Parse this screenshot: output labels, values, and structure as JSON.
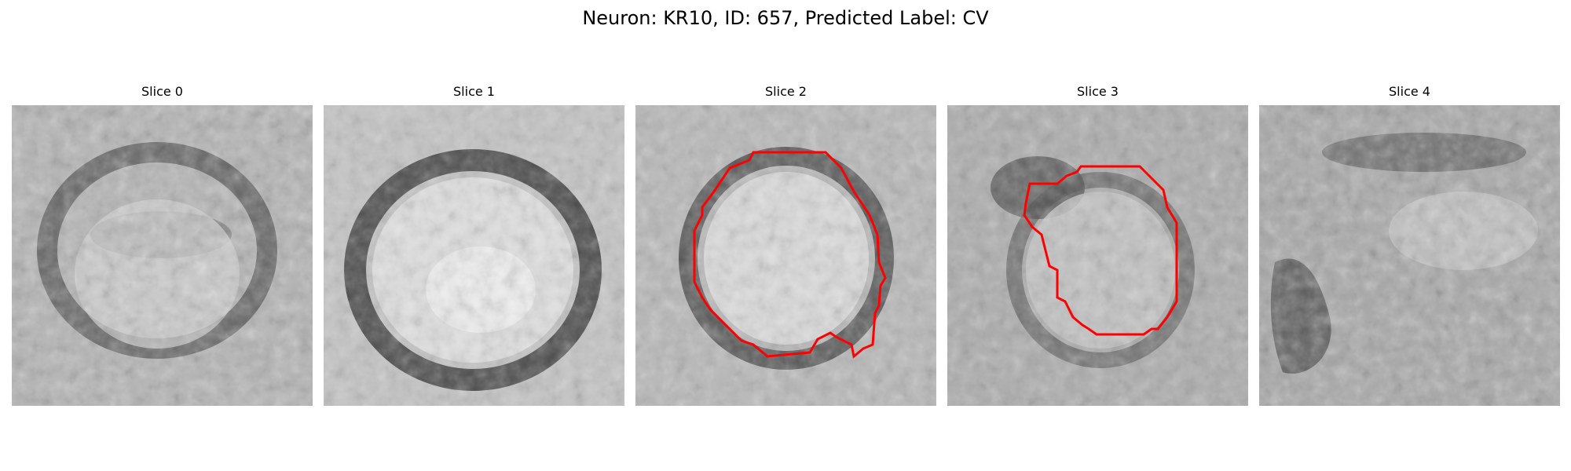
{
  "figure": {
    "title": "Neuron: KR10, ID: 657, Predicted Label: CV"
  },
  "panels": [
    {
      "title": "Slice 0",
      "has_contour": false
    },
    {
      "title": "Slice 1",
      "has_contour": false
    },
    {
      "title": "Slice 2",
      "has_contour": true
    },
    {
      "title": "Slice 3",
      "has_contour": true
    },
    {
      "title": "Slice 4",
      "has_contour": false
    }
  ],
  "colors": {
    "background": "#ffffff",
    "contour": "#ff0000",
    "image_colormap": "grayscale"
  }
}
